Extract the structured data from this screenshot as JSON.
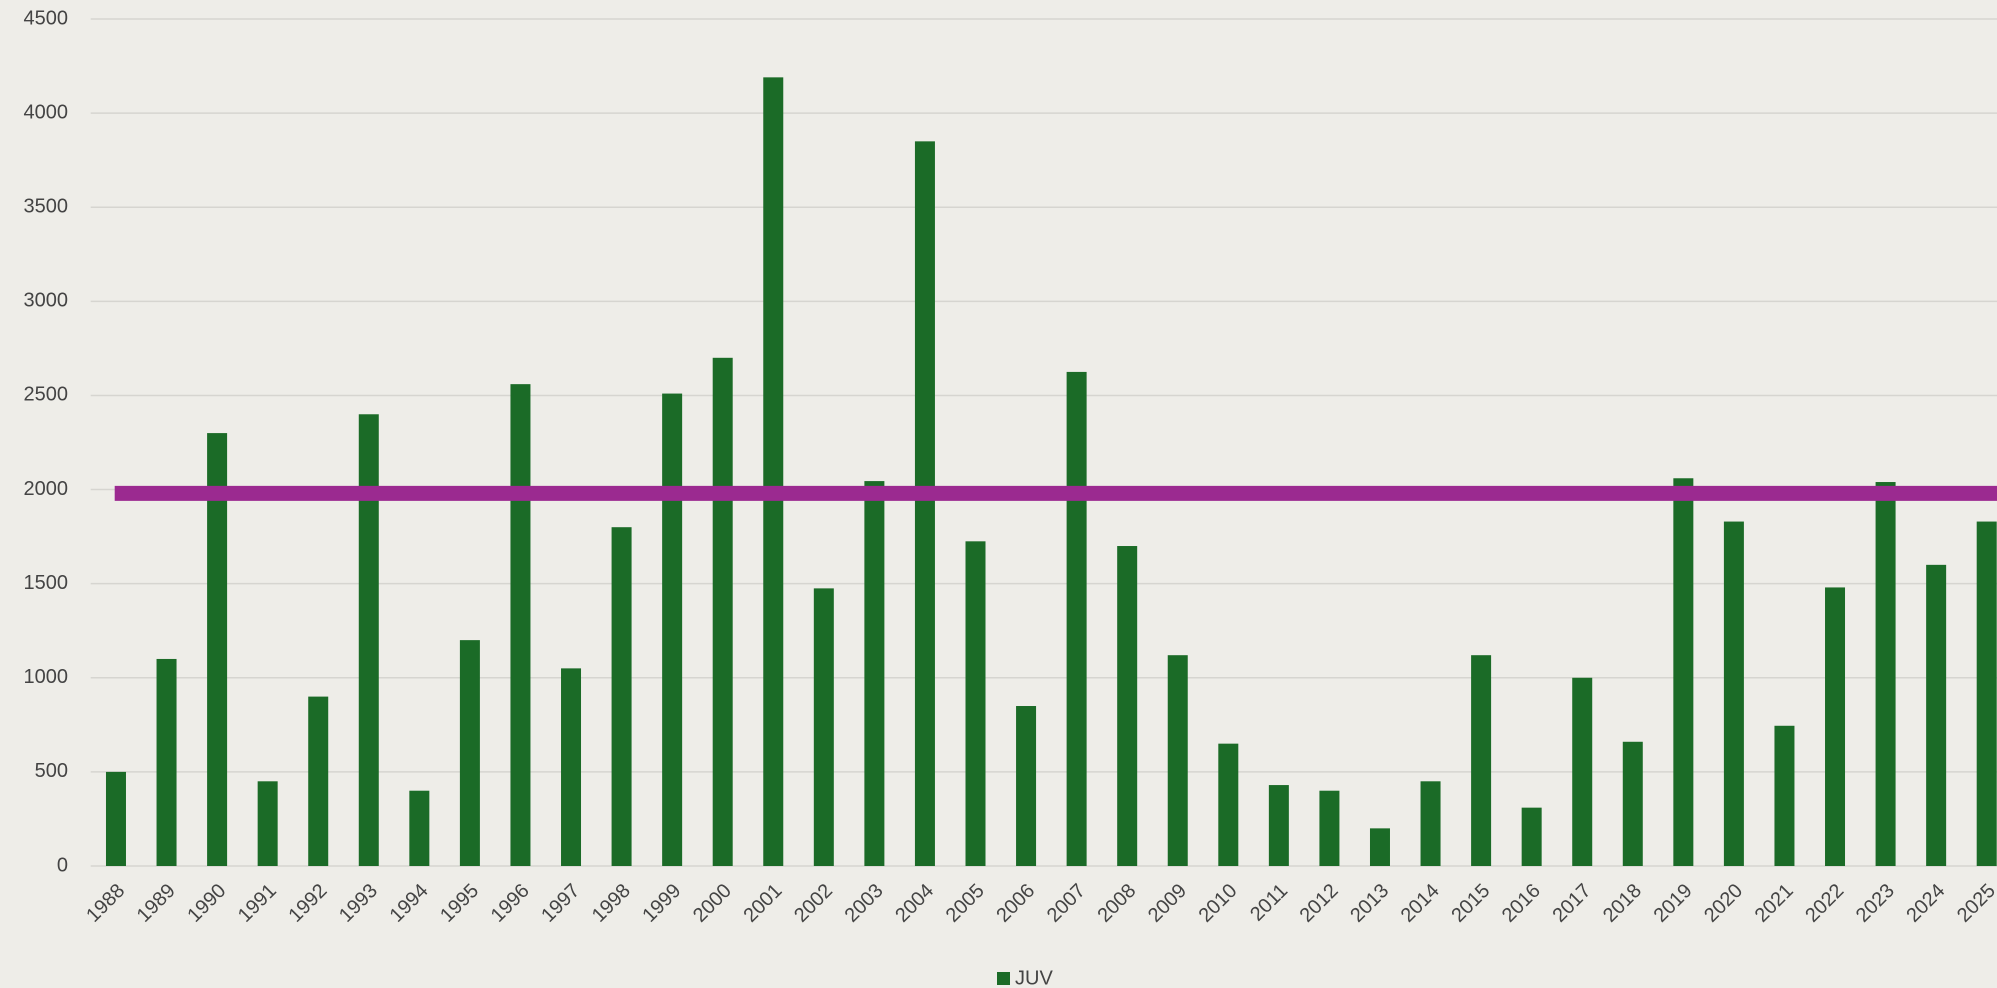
{
  "chart_data": {
    "type": "bar",
    "categories": [
      "1988",
      "1989",
      "1990",
      "1991",
      "1992",
      "1993",
      "1994",
      "1995",
      "1996",
      "1997",
      "1998",
      "1999",
      "2000",
      "2001",
      "2002",
      "2003",
      "2004",
      "2005",
      "2006",
      "2007",
      "2008",
      "2009",
      "2010",
      "2011",
      "2012",
      "2013",
      "2014",
      "2015",
      "2016",
      "2017",
      "2018",
      "2019",
      "2020",
      "2021",
      "2022",
      "2023",
      "2024",
      "2025"
    ],
    "series": [
      {
        "name": "JUV",
        "color": "#1b6b27",
        "values": [
          500,
          1100,
          2300,
          450,
          900,
          2400,
          400,
          1200,
          2560,
          1050,
          1800,
          2510,
          2700,
          4190,
          1475,
          2045,
          3850,
          1725,
          850,
          2625,
          1700,
          1120,
          650,
          430,
          400,
          200,
          450,
          1120,
          310,
          1000,
          660,
          2060,
          1830,
          745,
          1480,
          2040,
          1600,
          1830
        ]
      }
    ],
    "reference_line": {
      "value": 1980,
      "color": "#9b2a90"
    },
    "ylim": [
      0,
      4500
    ],
    "yticks": [
      0,
      500,
      1000,
      1500,
      2000,
      2500,
      3000,
      3500,
      4000,
      4500
    ],
    "grid": true,
    "legend": "bottom"
  }
}
